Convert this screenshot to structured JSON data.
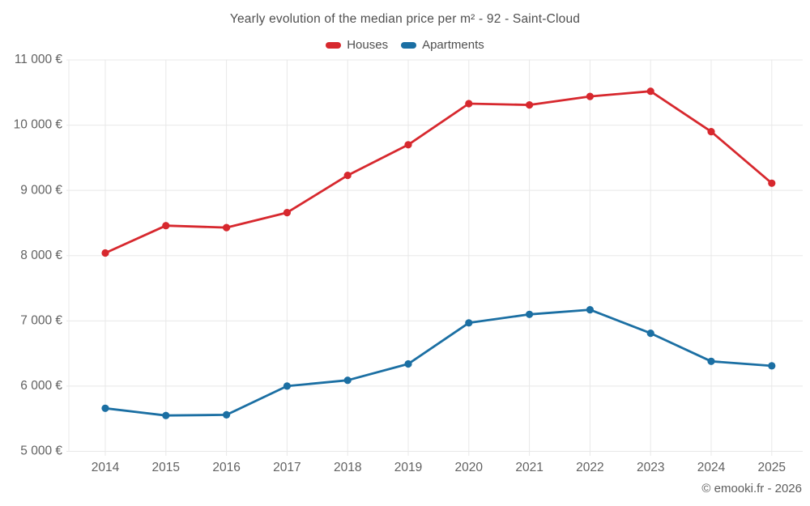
{
  "page": {
    "footer_credit": "© emooki.fr - 2026"
  },
  "chart_data": {
    "type": "line",
    "title": "Yearly evolution of the median price per m² - 92 - Saint-Cloud",
    "categories": [
      "2014",
      "2015",
      "2016",
      "2017",
      "2018",
      "2019",
      "2020",
      "2021",
      "2022",
      "2023",
      "2024",
      "2025"
    ],
    "series": [
      {
        "name": "Houses",
        "color": "#d7282e",
        "values": [
          8040,
          8460,
          8430,
          8660,
          9230,
          9700,
          10330,
          10310,
          10440,
          10520,
          9900,
          9110
        ]
      },
      {
        "name": "Apartments",
        "color": "#1b6fa3",
        "values": [
          5660,
          5550,
          5560,
          6000,
          6090,
          6340,
          6970,
          7100,
          7170,
          6810,
          6380,
          6310
        ]
      }
    ],
    "y_ticks": [
      {
        "value": 5000,
        "label": "5 000 €"
      },
      {
        "value": 6000,
        "label": "6 000 €"
      },
      {
        "value": 7000,
        "label": "7 000 €"
      },
      {
        "value": 8000,
        "label": "8 000 €"
      },
      {
        "value": 9000,
        "label": "9 000 €"
      },
      {
        "value": 10000,
        "label": "10 000 €"
      },
      {
        "value": 11000,
        "label": "11 000 €"
      }
    ],
    "ylim": [
      5000,
      11000
    ],
    "xlabel": "",
    "ylabel": "",
    "grid": true,
    "legend_position": "top",
    "grid_color": "#e8e8e8",
    "tick_label_color": "#616161"
  }
}
